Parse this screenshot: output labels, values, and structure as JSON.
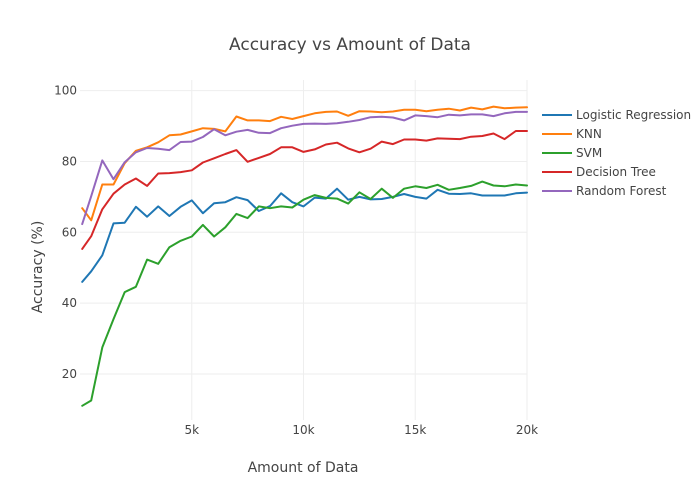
{
  "chart_data": {
    "type": "line",
    "title": "Accuracy vs Amount of Data",
    "xlabel": "Amount of Data",
    "ylabel": "Accuracy (%)",
    "xlim": [
      0,
      20000
    ],
    "ylim": [
      7,
      103
    ],
    "x_ticks": [
      {
        "value": 5000,
        "label": "5k"
      },
      {
        "value": 10000,
        "label": "10k"
      },
      {
        "value": 15000,
        "label": "15k"
      },
      {
        "value": 20000,
        "label": "20k"
      }
    ],
    "y_ticks": [
      20,
      40,
      60,
      80,
      100
    ],
    "grid": true,
    "legend_position": "top-right",
    "x": [
      100,
      500,
      1000,
      1500,
      2000,
      2500,
      3000,
      3500,
      4000,
      4500,
      5000,
      5500,
      6000,
      6500,
      7000,
      7500,
      8000,
      8500,
      9000,
      9500,
      10000,
      10500,
      11000,
      11500,
      12000,
      12500,
      13000,
      13500,
      14000,
      14500,
      15000,
      15500,
      16000,
      16500,
      17000,
      17500,
      18000,
      18500,
      19000,
      19500,
      20000
    ],
    "series": [
      {
        "name": "Logistic Regression",
        "color": "#1f77b4",
        "values": [
          46.0,
          49.0,
          53.5,
          62.5,
          62.7,
          67.2,
          64.4,
          67.3,
          64.6,
          67.2,
          69.0,
          65.4,
          68.2,
          68.5,
          69.9,
          69.1,
          66.0,
          67.4,
          71.0,
          68.5,
          67.3,
          69.8,
          69.5,
          72.3,
          69.2,
          70.0,
          69.3,
          69.4,
          70.0,
          70.8,
          70.0,
          69.5,
          72.0,
          70.9,
          70.8,
          71.0,
          70.4,
          70.4,
          70.4,
          71.0,
          71.2
        ]
      },
      {
        "name": "KNN",
        "color": "#ff7f0e",
        "values": [
          66.8,
          63.4,
          73.5,
          73.5,
          79.5,
          83.0,
          84.0,
          85.4,
          87.4,
          87.6,
          88.5,
          89.4,
          89.2,
          88.5,
          92.7,
          91.6,
          91.6,
          91.4,
          92.6,
          92.0,
          92.8,
          93.6,
          94.0,
          94.1,
          92.9,
          94.2,
          94.1,
          93.9,
          94.1,
          94.6,
          94.6,
          94.2,
          94.6,
          94.9,
          94.4,
          95.2,
          94.7,
          95.5,
          95.0,
          95.2,
          95.3
        ]
      },
      {
        "name": "SVM",
        "color": "#2ca02c",
        "values": [
          11.0,
          12.5,
          27.5,
          35.5,
          43.1,
          44.6,
          52.3,
          51.1,
          55.8,
          57.6,
          58.8,
          62.1,
          58.8,
          61.4,
          65.2,
          64.0,
          67.3,
          66.8,
          67.3,
          67.0,
          69.2,
          70.5,
          69.7,
          69.5,
          68.1,
          71.3,
          69.4,
          72.3,
          69.7,
          72.3,
          73.0,
          72.5,
          73.4,
          72.0,
          72.5,
          73.1,
          74.3,
          73.2,
          73.0,
          73.5,
          73.2
        ]
      },
      {
        "name": "Decision Tree",
        "color": "#d62728",
        "values": [
          55.3,
          58.9,
          66.5,
          70.9,
          73.5,
          75.2,
          73.1,
          76.6,
          76.7,
          77.0,
          77.5,
          79.7,
          80.9,
          82.1,
          83.2,
          79.9,
          81.0,
          82.1,
          84.0,
          84.0,
          82.7,
          83.4,
          84.8,
          85.3,
          83.7,
          82.6,
          83.6,
          85.6,
          84.9,
          86.2,
          86.2,
          85.9,
          86.5,
          86.4,
          86.3,
          87.0,
          87.2,
          87.9,
          86.3,
          88.6,
          88.6
        ]
      },
      {
        "name": "Random Forest",
        "color": "#9467bd",
        "values": [
          62.3,
          70.2,
          80.3,
          75.0,
          79.8,
          82.6,
          83.8,
          83.6,
          83.2,
          85.5,
          85.6,
          86.9,
          89.1,
          87.4,
          88.4,
          88.9,
          88.1,
          88.0,
          89.4,
          90.1,
          90.6,
          90.7,
          90.6,
          90.8,
          91.2,
          91.7,
          92.5,
          92.6,
          92.4,
          91.6,
          93.0,
          92.8,
          92.5,
          93.2,
          93.0,
          93.3,
          93.3,
          92.8,
          93.6,
          94.0,
          94.0
        ]
      }
    ]
  }
}
